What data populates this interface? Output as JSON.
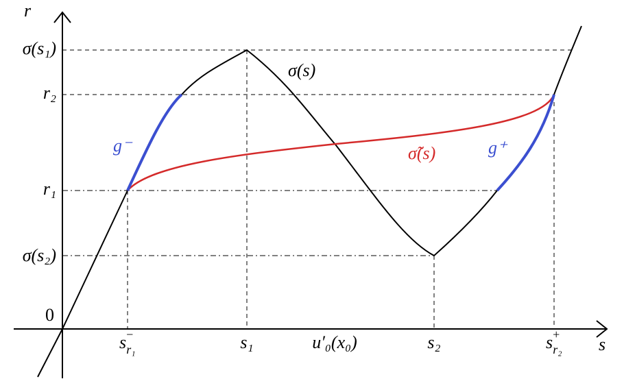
{
  "axes": {
    "y_label": "r",
    "x_label": "s",
    "origin": "0"
  },
  "y_ticks": [
    "σ(s₁)",
    "r₂",
    "r₁",
    "σ(s₂)"
  ],
  "x_ticks": [
    {
      "base": "s",
      "sup": "−",
      "sub": "r₁"
    },
    "s₁",
    "u′₀(x₀)",
    "s₂",
    {
      "base": "s",
      "sup": "+",
      "sub": "r₂"
    }
  ],
  "curves": {
    "sigma": "σ(s)",
    "sigma_tilde": "σ̃(s)",
    "g_minus": "g⁻",
    "g_plus": "g⁺"
  }
}
